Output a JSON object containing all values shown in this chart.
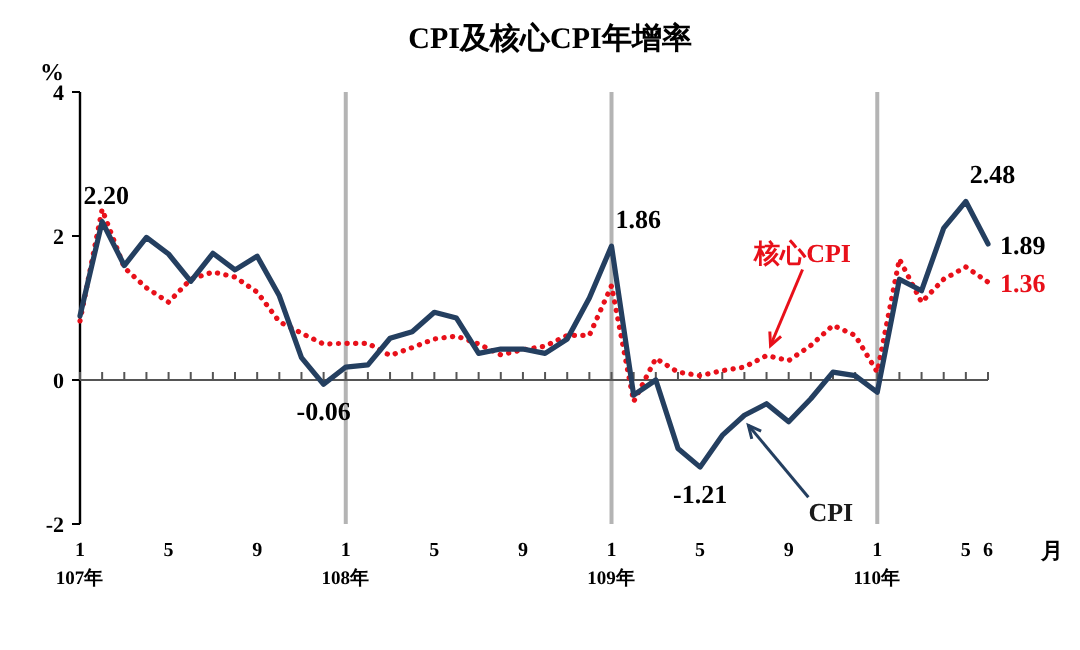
{
  "chart_data": {
    "type": "line",
    "title": "CPI及核心CPI年增率",
    "ylabel": "%",
    "xlabel": "月",
    "categories": [
      "1\n107年",
      null,
      null,
      null,
      "5",
      null,
      null,
      null,
      "9",
      null,
      null,
      null,
      "1\n108年",
      null,
      null,
      null,
      "5",
      null,
      null,
      null,
      "9",
      null,
      null,
      null,
      "1\n109年",
      null,
      null,
      null,
      "5",
      null,
      null,
      null,
      "9",
      null,
      null,
      null,
      "1\n110年",
      null,
      null,
      null,
      "5",
      "6"
    ],
    "series": [
      {
        "name": "CPI",
        "color": "#243f60",
        "line_style": "solid",
        "values": [
          0.89,
          2.2,
          1.59,
          1.98,
          1.75,
          1.37,
          1.76,
          1.53,
          1.72,
          1.17,
          0.31,
          -0.06,
          0.18,
          0.21,
          0.58,
          0.67,
          0.94,
          0.86,
          0.37,
          0.43,
          0.43,
          0.37,
          0.57,
          1.14,
          1.86,
          -0.21,
          0.0,
          -0.95,
          -1.21,
          -0.77,
          -0.49,
          -0.33,
          -0.58,
          -0.26,
          0.11,
          0.06,
          -0.17,
          1.4,
          1.24,
          2.11,
          2.48,
          1.89
        ],
        "value_labels": [
          null,
          "2.20",
          null,
          null,
          null,
          null,
          null,
          null,
          null,
          null,
          null,
          "-0.06",
          null,
          null,
          null,
          null,
          null,
          null,
          null,
          null,
          null,
          null,
          null,
          null,
          "1.86",
          null,
          null,
          null,
          "-1.21",
          null,
          null,
          null,
          null,
          null,
          null,
          null,
          null,
          null,
          null,
          null,
          "2.48",
          "1.89"
        ]
      },
      {
        "name": "核心CPI",
        "color": "#e8101a",
        "line_style": "dotted",
        "values": [
          0.82,
          2.37,
          1.56,
          1.28,
          1.08,
          1.4,
          1.5,
          1.43,
          1.22,
          0.81,
          0.65,
          0.5,
          0.51,
          0.51,
          0.34,
          0.45,
          0.57,
          0.61,
          0.5,
          0.35,
          0.42,
          0.47,
          0.62,
          0.62,
          1.31,
          -0.3,
          0.3,
          0.11,
          0.06,
          0.13,
          0.18,
          0.34,
          0.27,
          0.48,
          0.76,
          0.62,
          0.11,
          1.68,
          1.08,
          1.4,
          1.57,
          1.36
        ],
        "value_labels": [
          null,
          null,
          null,
          null,
          null,
          null,
          null,
          null,
          null,
          null,
          null,
          null,
          null,
          null,
          null,
          null,
          null,
          null,
          null,
          null,
          null,
          null,
          null,
          null,
          null,
          null,
          null,
          null,
          null,
          null,
          null,
          null,
          null,
          null,
          null,
          null,
          null,
          null,
          null,
          null,
          null,
          "1.36"
        ]
      }
    ],
    "ylim": [
      -2,
      4
    ],
    "yticks": [
      -2,
      0,
      2,
      4
    ],
    "grid": false,
    "marker": "none",
    "ref_lines": [
      {
        "axis": "x",
        "value": "1\n108年",
        "color": "#b4b4b4"
      },
      {
        "axis": "x",
        "value": "1\n109年",
        "color": "#b4b4b4"
      },
      {
        "axis": "x",
        "value": "1\n110年",
        "color": "#b4b4b4"
      }
    ]
  }
}
